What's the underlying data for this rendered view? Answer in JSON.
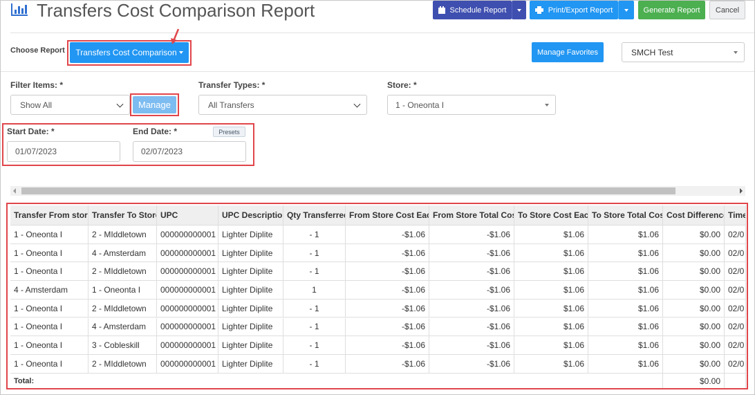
{
  "header": {
    "title": "Transfers Cost Comparison Report",
    "buttons": {
      "schedule": "Schedule Report",
      "print": "Print/Export Report",
      "generate": "Generate Report",
      "cancel": "Cancel"
    }
  },
  "report": {
    "label": "Choose Report",
    "selected": "Transfers Cost Comparison",
    "manage_favorites": "Manage Favorites",
    "location": "SMCH Test"
  },
  "filters": {
    "filter_items": {
      "label": "Filter Items: *",
      "value": "Show All",
      "button": "Manage"
    },
    "transfer_types": {
      "label": "Transfer Types: *",
      "value": "All Transfers"
    },
    "store": {
      "label": "Store: *",
      "value": "1 - Oneonta I"
    },
    "start_date": {
      "label": "Start Date: *",
      "value": "01/07/2023"
    },
    "end_date": {
      "label": "End Date: *",
      "value": "02/07/2023"
    },
    "presets": "Presets"
  },
  "table": {
    "columns": [
      "Transfer From store",
      "Transfer To Store",
      "UPC",
      "UPC Description",
      "Qty Transferred",
      "From Store Cost Each",
      "From Store Total Cost",
      "To Store Cost Each",
      "To Store Total Cost",
      "Cost Difference",
      "Time"
    ],
    "rows": [
      [
        "1 - Oneonta I",
        "2 - MIddletown",
        "000000000001",
        "Lighter Diplite",
        "- 1",
        "-$1.06",
        "-$1.06",
        "$1.06",
        "$1.06",
        "$0.00",
        "02/0"
      ],
      [
        "1 - Oneonta I",
        "4 - Amsterdam",
        "000000000001",
        "Lighter Diplite",
        "- 1",
        "-$1.06",
        "-$1.06",
        "$1.06",
        "$1.06",
        "$0.00",
        "02/0"
      ],
      [
        "1 - Oneonta I",
        "2 - MIddletown",
        "000000000001",
        "Lighter Diplite",
        "- 1",
        "-$1.06",
        "-$1.06",
        "$1.06",
        "$1.06",
        "$0.00",
        "02/0"
      ],
      [
        "4 - Amsterdam",
        "1 - Oneonta I",
        "000000000001",
        "Lighter Diplite",
        "1",
        "-$1.06",
        "-$1.06",
        "$1.06",
        "$1.06",
        "$0.00",
        "02/0"
      ],
      [
        "1 - Oneonta I",
        "2 - MIddletown",
        "000000000001",
        "Lighter Diplite",
        "- 1",
        "-$1.06",
        "-$1.06",
        "$1.06",
        "$1.06",
        "$0.00",
        "02/0"
      ],
      [
        "1 - Oneonta I",
        "4 - Amsterdam",
        "000000000001",
        "Lighter Diplite",
        "- 1",
        "-$1.06",
        "-$1.06",
        "$1.06",
        "$1.06",
        "$0.00",
        "02/0"
      ],
      [
        "1 - Oneonta I",
        "3 - Cobleskill",
        "000000000001",
        "Lighter Diplite",
        "- 1",
        "-$1.06",
        "-$1.06",
        "$1.06",
        "$1.06",
        "$0.00",
        "02/0"
      ],
      [
        "1 - Oneonta I",
        "2 - MIddletown",
        "000000000001",
        "Lighter Diplite",
        "- 1",
        "-$1.06",
        "-$1.06",
        "$1.06",
        "$1.06",
        "$0.00",
        "02/0"
      ]
    ],
    "total": {
      "label": "Total:",
      "cost_difference": "$0.00"
    }
  }
}
